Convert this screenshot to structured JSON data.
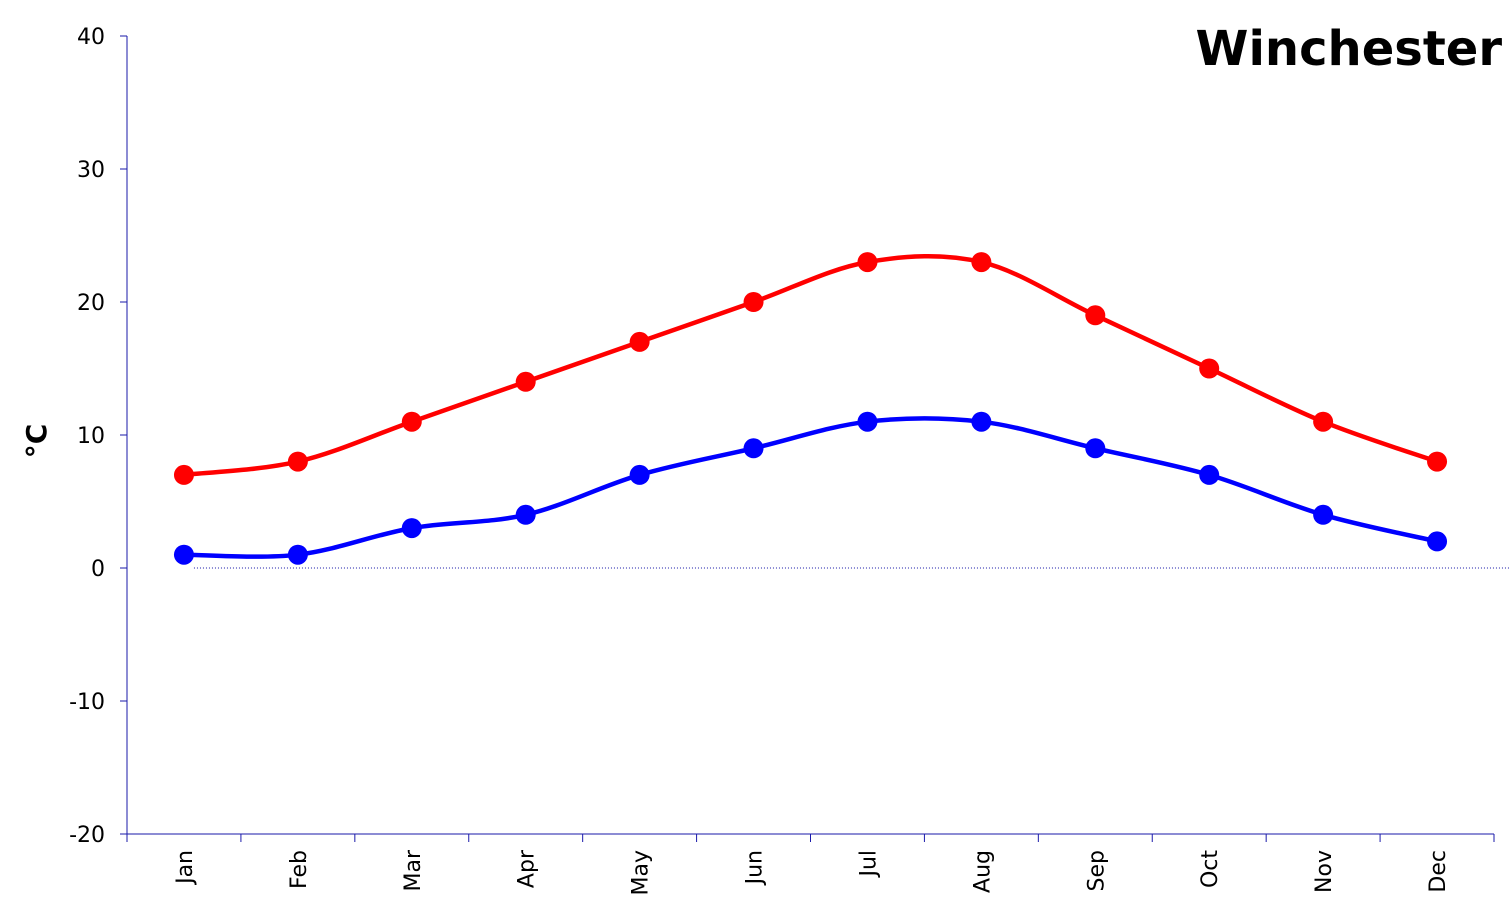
{
  "chart_data": {
    "type": "line",
    "title": "Winchester",
    "xlabel": "",
    "ylabel": "°C",
    "categories": [
      "Jan",
      "Feb",
      "Mar",
      "Apr",
      "May",
      "Jun",
      "Jul",
      "Aug",
      "Sep",
      "Oct",
      "Nov",
      "Dec"
    ],
    "ylim": [
      -20,
      40
    ],
    "yticks": [
      40,
      30,
      20,
      10,
      0,
      -10,
      -20
    ],
    "grid": false,
    "zero_line": true,
    "series": [
      {
        "values": [
          7,
          8,
          11,
          14,
          17,
          20,
          23,
          23,
          19,
          15,
          11,
          8
        ],
        "color": "#ff0000"
      },
      {
        "values": [
          1,
          1,
          3,
          4,
          7,
          9,
          11,
          11,
          9,
          7,
          4,
          2
        ],
        "color": "#0000ff"
      }
    ]
  }
}
